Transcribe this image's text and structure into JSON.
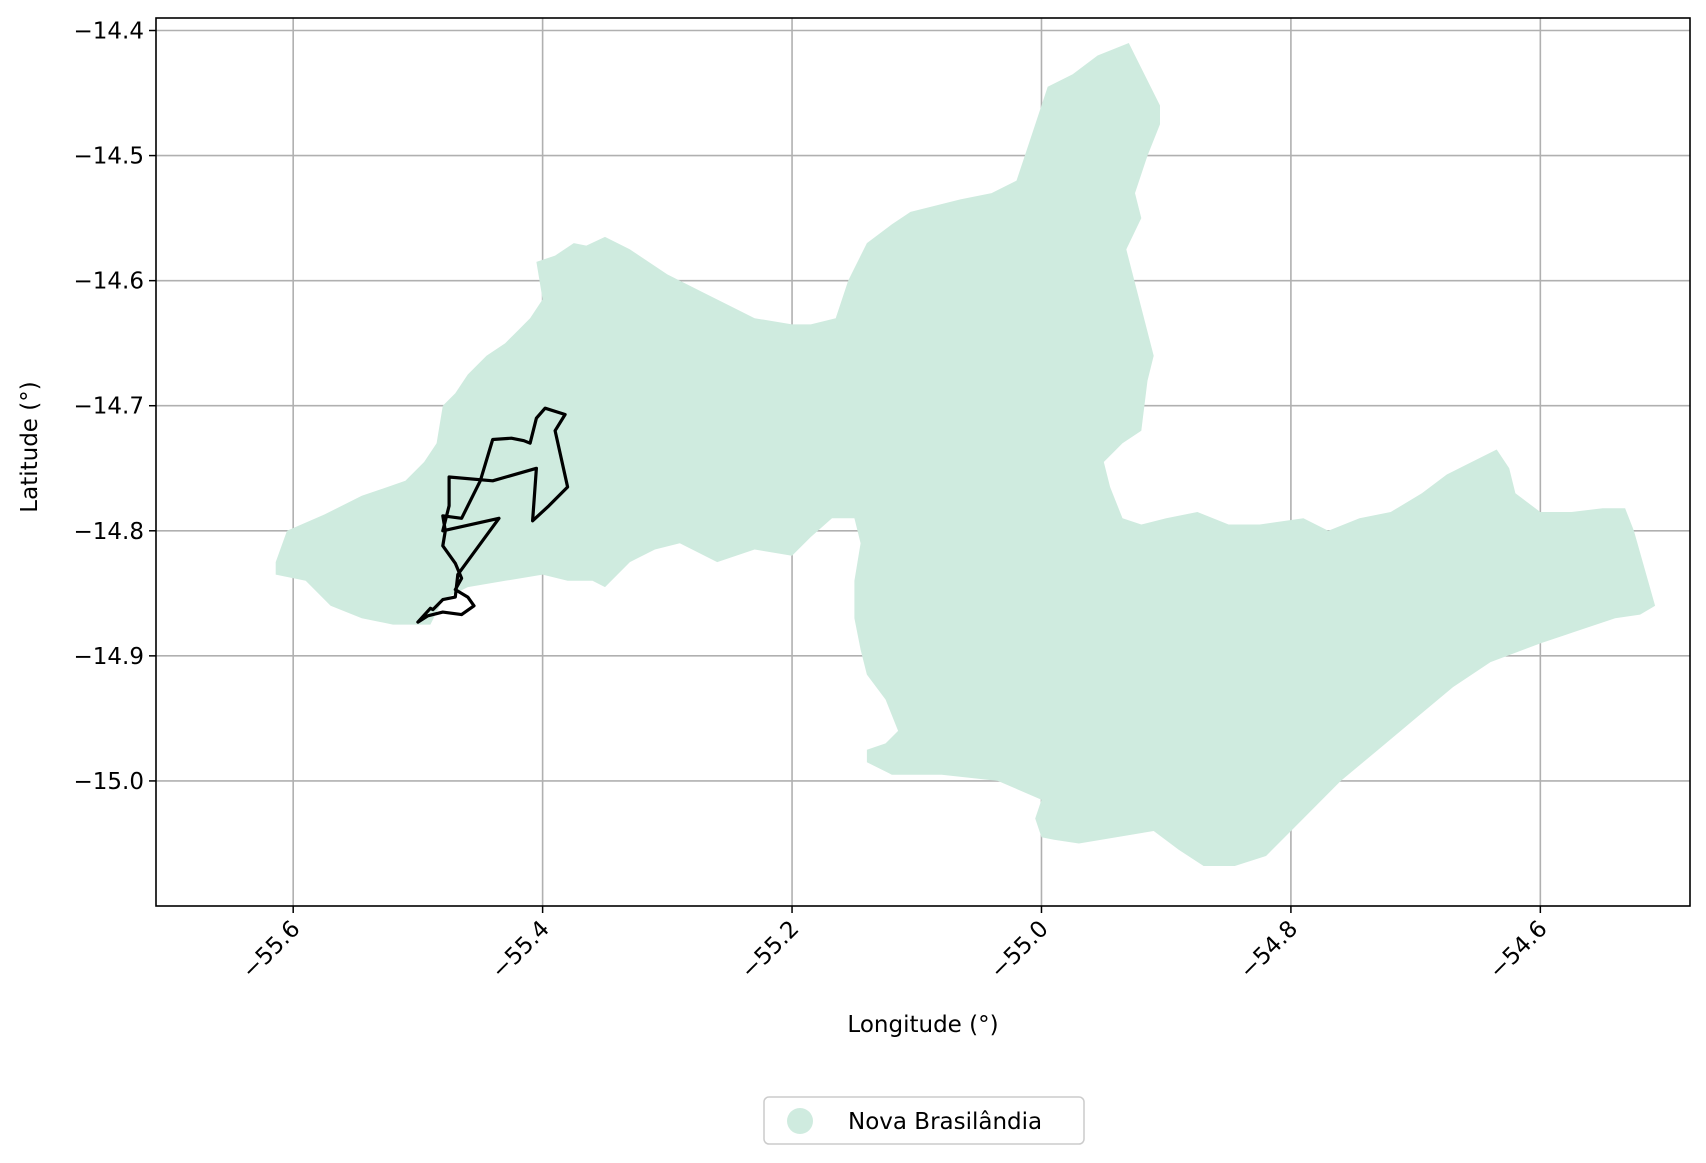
{
  "map": {
    "xlabel": "Longitude (°)",
    "ylabel": "Latitude (°)",
    "xlim": [
      -55.71,
      -54.48
    ],
    "ylim": [
      -15.1,
      -14.39
    ],
    "grid": true,
    "x_ticks": [
      {
        "value": -55.6,
        "label": "−55.6"
      },
      {
        "value": -55.4,
        "label": "−55.4"
      },
      {
        "value": -55.2,
        "label": "−55.2"
      },
      {
        "value": -55.0,
        "label": "−55.0"
      },
      {
        "value": -54.8,
        "label": "−54.8"
      },
      {
        "value": -54.6,
        "label": "−54.6"
      }
    ],
    "y_ticks": [
      {
        "value": -14.4,
        "label": "−14.4"
      },
      {
        "value": -14.5,
        "label": "−14.5"
      },
      {
        "value": -14.6,
        "label": "−14.6"
      },
      {
        "value": -14.7,
        "label": "−14.7"
      },
      {
        "value": -14.8,
        "label": "−14.8"
      },
      {
        "value": -14.9,
        "label": "−14.9"
      },
      {
        "value": -15.0,
        "label": "−15.0"
      }
    ],
    "legend": {
      "placement": "bottom-center",
      "entries": [
        {
          "label": "Nova Brasilândia",
          "color": "#cfebdf",
          "marker": "circle"
        }
      ]
    },
    "colors": {
      "region_fill": "#cfebdf",
      "outline": "#000000",
      "grid": "#b0b0b0"
    },
    "region": {
      "name": "Nova Brasilândia",
      "points": [
        [
          -55.614,
          -14.825
        ],
        [
          -55.605,
          -14.8
        ],
        [
          -55.575,
          -14.787
        ],
        [
          -55.545,
          -14.772
        ],
        [
          -55.51,
          -14.76
        ],
        [
          -55.495,
          -14.745
        ],
        [
          -55.485,
          -14.73
        ],
        [
          -55.48,
          -14.7
        ],
        [
          -55.47,
          -14.69
        ],
        [
          -55.46,
          -14.675
        ],
        [
          -55.445,
          -14.66
        ],
        [
          -55.43,
          -14.65
        ],
        [
          -55.42,
          -14.64
        ],
        [
          -55.41,
          -14.63
        ],
        [
          -55.4,
          -14.615
        ],
        [
          -55.405,
          -14.585
        ],
        [
          -55.39,
          -14.58
        ],
        [
          -55.375,
          -14.57
        ],
        [
          -55.365,
          -14.572
        ],
        [
          -55.35,
          -14.565
        ],
        [
          -55.33,
          -14.575
        ],
        [
          -55.3,
          -14.595
        ],
        [
          -55.27,
          -14.61
        ],
        [
          -55.25,
          -14.62
        ],
        [
          -55.23,
          -14.63
        ],
        [
          -55.2,
          -14.635
        ],
        [
          -55.185,
          -14.635
        ],
        [
          -55.165,
          -14.63
        ],
        [
          -55.155,
          -14.6
        ],
        [
          -55.14,
          -14.57
        ],
        [
          -55.12,
          -14.555
        ],
        [
          -55.105,
          -14.545
        ],
        [
          -55.085,
          -14.54
        ],
        [
          -55.065,
          -14.535
        ],
        [
          -55.04,
          -14.53
        ],
        [
          -55.02,
          -14.52
        ],
        [
          -55.01,
          -14.49
        ],
        [
          -55.0,
          -14.46
        ],
        [
          -54.995,
          -14.445
        ],
        [
          -54.975,
          -14.435
        ],
        [
          -54.955,
          -14.42
        ],
        [
          -54.93,
          -14.41
        ],
        [
          -54.925,
          -14.42
        ],
        [
          -54.915,
          -14.44
        ],
        [
          -54.905,
          -14.46
        ],
        [
          -54.905,
          -14.475
        ],
        [
          -54.915,
          -14.5
        ],
        [
          -54.925,
          -14.53
        ],
        [
          -54.92,
          -14.55
        ],
        [
          -54.932,
          -14.575
        ],
        [
          -54.91,
          -14.66
        ],
        [
          -54.915,
          -14.68
        ],
        [
          -54.92,
          -14.72
        ],
        [
          -54.935,
          -14.73
        ],
        [
          -54.95,
          -14.745
        ],
        [
          -54.945,
          -14.765
        ],
        [
          -54.935,
          -14.79
        ],
        [
          -54.92,
          -14.795
        ],
        [
          -54.9,
          -14.79
        ],
        [
          -54.875,
          -14.785
        ],
        [
          -54.85,
          -14.795
        ],
        [
          -54.825,
          -14.795
        ],
        [
          -54.79,
          -14.79
        ],
        [
          -54.77,
          -14.8
        ],
        [
          -54.745,
          -14.79
        ],
        [
          -54.72,
          -14.785
        ],
        [
          -54.695,
          -14.77
        ],
        [
          -54.675,
          -14.755
        ],
        [
          -54.655,
          -14.745
        ],
        [
          -54.635,
          -14.735
        ],
        [
          -54.625,
          -14.75
        ],
        [
          -54.62,
          -14.77
        ],
        [
          -54.6,
          -14.785
        ],
        [
          -54.575,
          -14.785
        ],
        [
          -54.55,
          -14.782
        ],
        [
          -54.532,
          -14.782
        ],
        [
          -54.525,
          -14.8
        ],
        [
          -54.515,
          -14.835
        ],
        [
          -54.508,
          -14.86
        ],
        [
          -54.52,
          -14.867
        ],
        [
          -54.54,
          -14.87
        ],
        [
          -54.57,
          -14.88
        ],
        [
          -54.6,
          -14.89
        ],
        [
          -54.64,
          -14.905
        ],
        [
          -54.67,
          -14.925
        ],
        [
          -54.7,
          -14.95
        ],
        [
          -54.73,
          -14.975
        ],
        [
          -54.76,
          -15.0
        ],
        [
          -54.79,
          -15.03
        ],
        [
          -54.82,
          -15.06
        ],
        [
          -54.845,
          -15.068
        ],
        [
          -54.87,
          -15.068
        ],
        [
          -54.89,
          -15.055
        ],
        [
          -54.91,
          -15.04
        ],
        [
          -54.94,
          -15.045
        ],
        [
          -54.97,
          -15.05
        ],
        [
          -54.99,
          -15.047
        ],
        [
          -55.0,
          -15.045
        ],
        [
          -55.005,
          -15.03
        ],
        [
          -55.0,
          -15.015
        ],
        [
          -55.035,
          -15.0
        ],
        [
          -55.08,
          -14.995
        ],
        [
          -55.12,
          -14.995
        ],
        [
          -55.14,
          -14.985
        ],
        [
          -55.14,
          -14.975
        ],
        [
          -55.125,
          -14.97
        ],
        [
          -55.115,
          -14.96
        ],
        [
          -55.125,
          -14.935
        ],
        [
          -55.14,
          -14.915
        ],
        [
          -55.145,
          -14.895
        ],
        [
          -55.15,
          -14.87
        ],
        [
          -55.15,
          -14.84
        ],
        [
          -55.145,
          -14.81
        ],
        [
          -55.15,
          -14.79
        ],
        [
          -55.168,
          -14.79
        ],
        [
          -55.185,
          -14.805
        ],
        [
          -55.2,
          -14.82
        ],
        [
          -55.23,
          -14.815
        ],
        [
          -55.26,
          -14.825
        ],
        [
          -55.29,
          -14.81
        ],
        [
          -55.31,
          -14.815
        ],
        [
          -55.33,
          -14.825
        ],
        [
          -55.35,
          -14.845
        ],
        [
          -55.36,
          -14.84
        ],
        [
          -55.38,
          -14.84
        ],
        [
          -55.4,
          -14.835
        ],
        [
          -55.43,
          -14.84
        ],
        [
          -55.46,
          -14.845
        ],
        [
          -55.48,
          -14.855
        ],
        [
          -55.49,
          -14.875
        ],
        [
          -55.52,
          -14.875
        ],
        [
          -55.545,
          -14.87
        ],
        [
          -55.57,
          -14.86
        ],
        [
          -55.59,
          -14.84
        ],
        [
          -55.614,
          -14.835
        ]
      ]
    },
    "outline": {
      "points": [
        [
          -55.41,
          -14.73
        ],
        [
          -55.405,
          -14.71
        ],
        [
          -55.398,
          -14.702
        ],
        [
          -55.382,
          -14.707
        ],
        [
          -55.39,
          -14.72
        ],
        [
          -55.38,
          -14.765
        ],
        [
          -55.395,
          -14.78
        ],
        [
          -55.408,
          -14.792
        ],
        [
          -55.405,
          -14.75
        ],
        [
          -55.44,
          -14.76
        ],
        [
          -55.475,
          -14.757
        ],
        [
          -55.475,
          -14.78
        ],
        [
          -55.48,
          -14.8
        ],
        [
          -55.435,
          -14.79
        ],
        [
          -55.468,
          -14.835
        ],
        [
          -55.47,
          -14.853
        ],
        [
          -55.48,
          -14.855
        ],
        [
          -55.488,
          -14.863
        ],
        [
          -55.49,
          -14.862
        ],
        [
          -55.5,
          -14.873
        ],
        [
          -55.492,
          -14.868
        ],
        [
          -55.48,
          -14.865
        ],
        [
          -55.465,
          -14.867
        ],
        [
          -55.455,
          -14.86
        ],
        [
          -55.46,
          -14.853
        ],
        [
          -55.47,
          -14.847
        ],
        [
          -55.465,
          -14.838
        ],
        [
          -55.47,
          -14.826
        ],
        [
          -55.48,
          -14.812
        ],
        [
          -55.478,
          -14.8
        ],
        [
          -55.48,
          -14.788
        ],
        [
          -55.465,
          -14.79
        ],
        [
          -55.45,
          -14.76
        ],
        [
          -55.44,
          -14.727
        ],
        [
          -55.425,
          -14.726
        ],
        [
          -55.415,
          -14.728
        ],
        [
          -55.41,
          -14.73
        ]
      ]
    }
  }
}
